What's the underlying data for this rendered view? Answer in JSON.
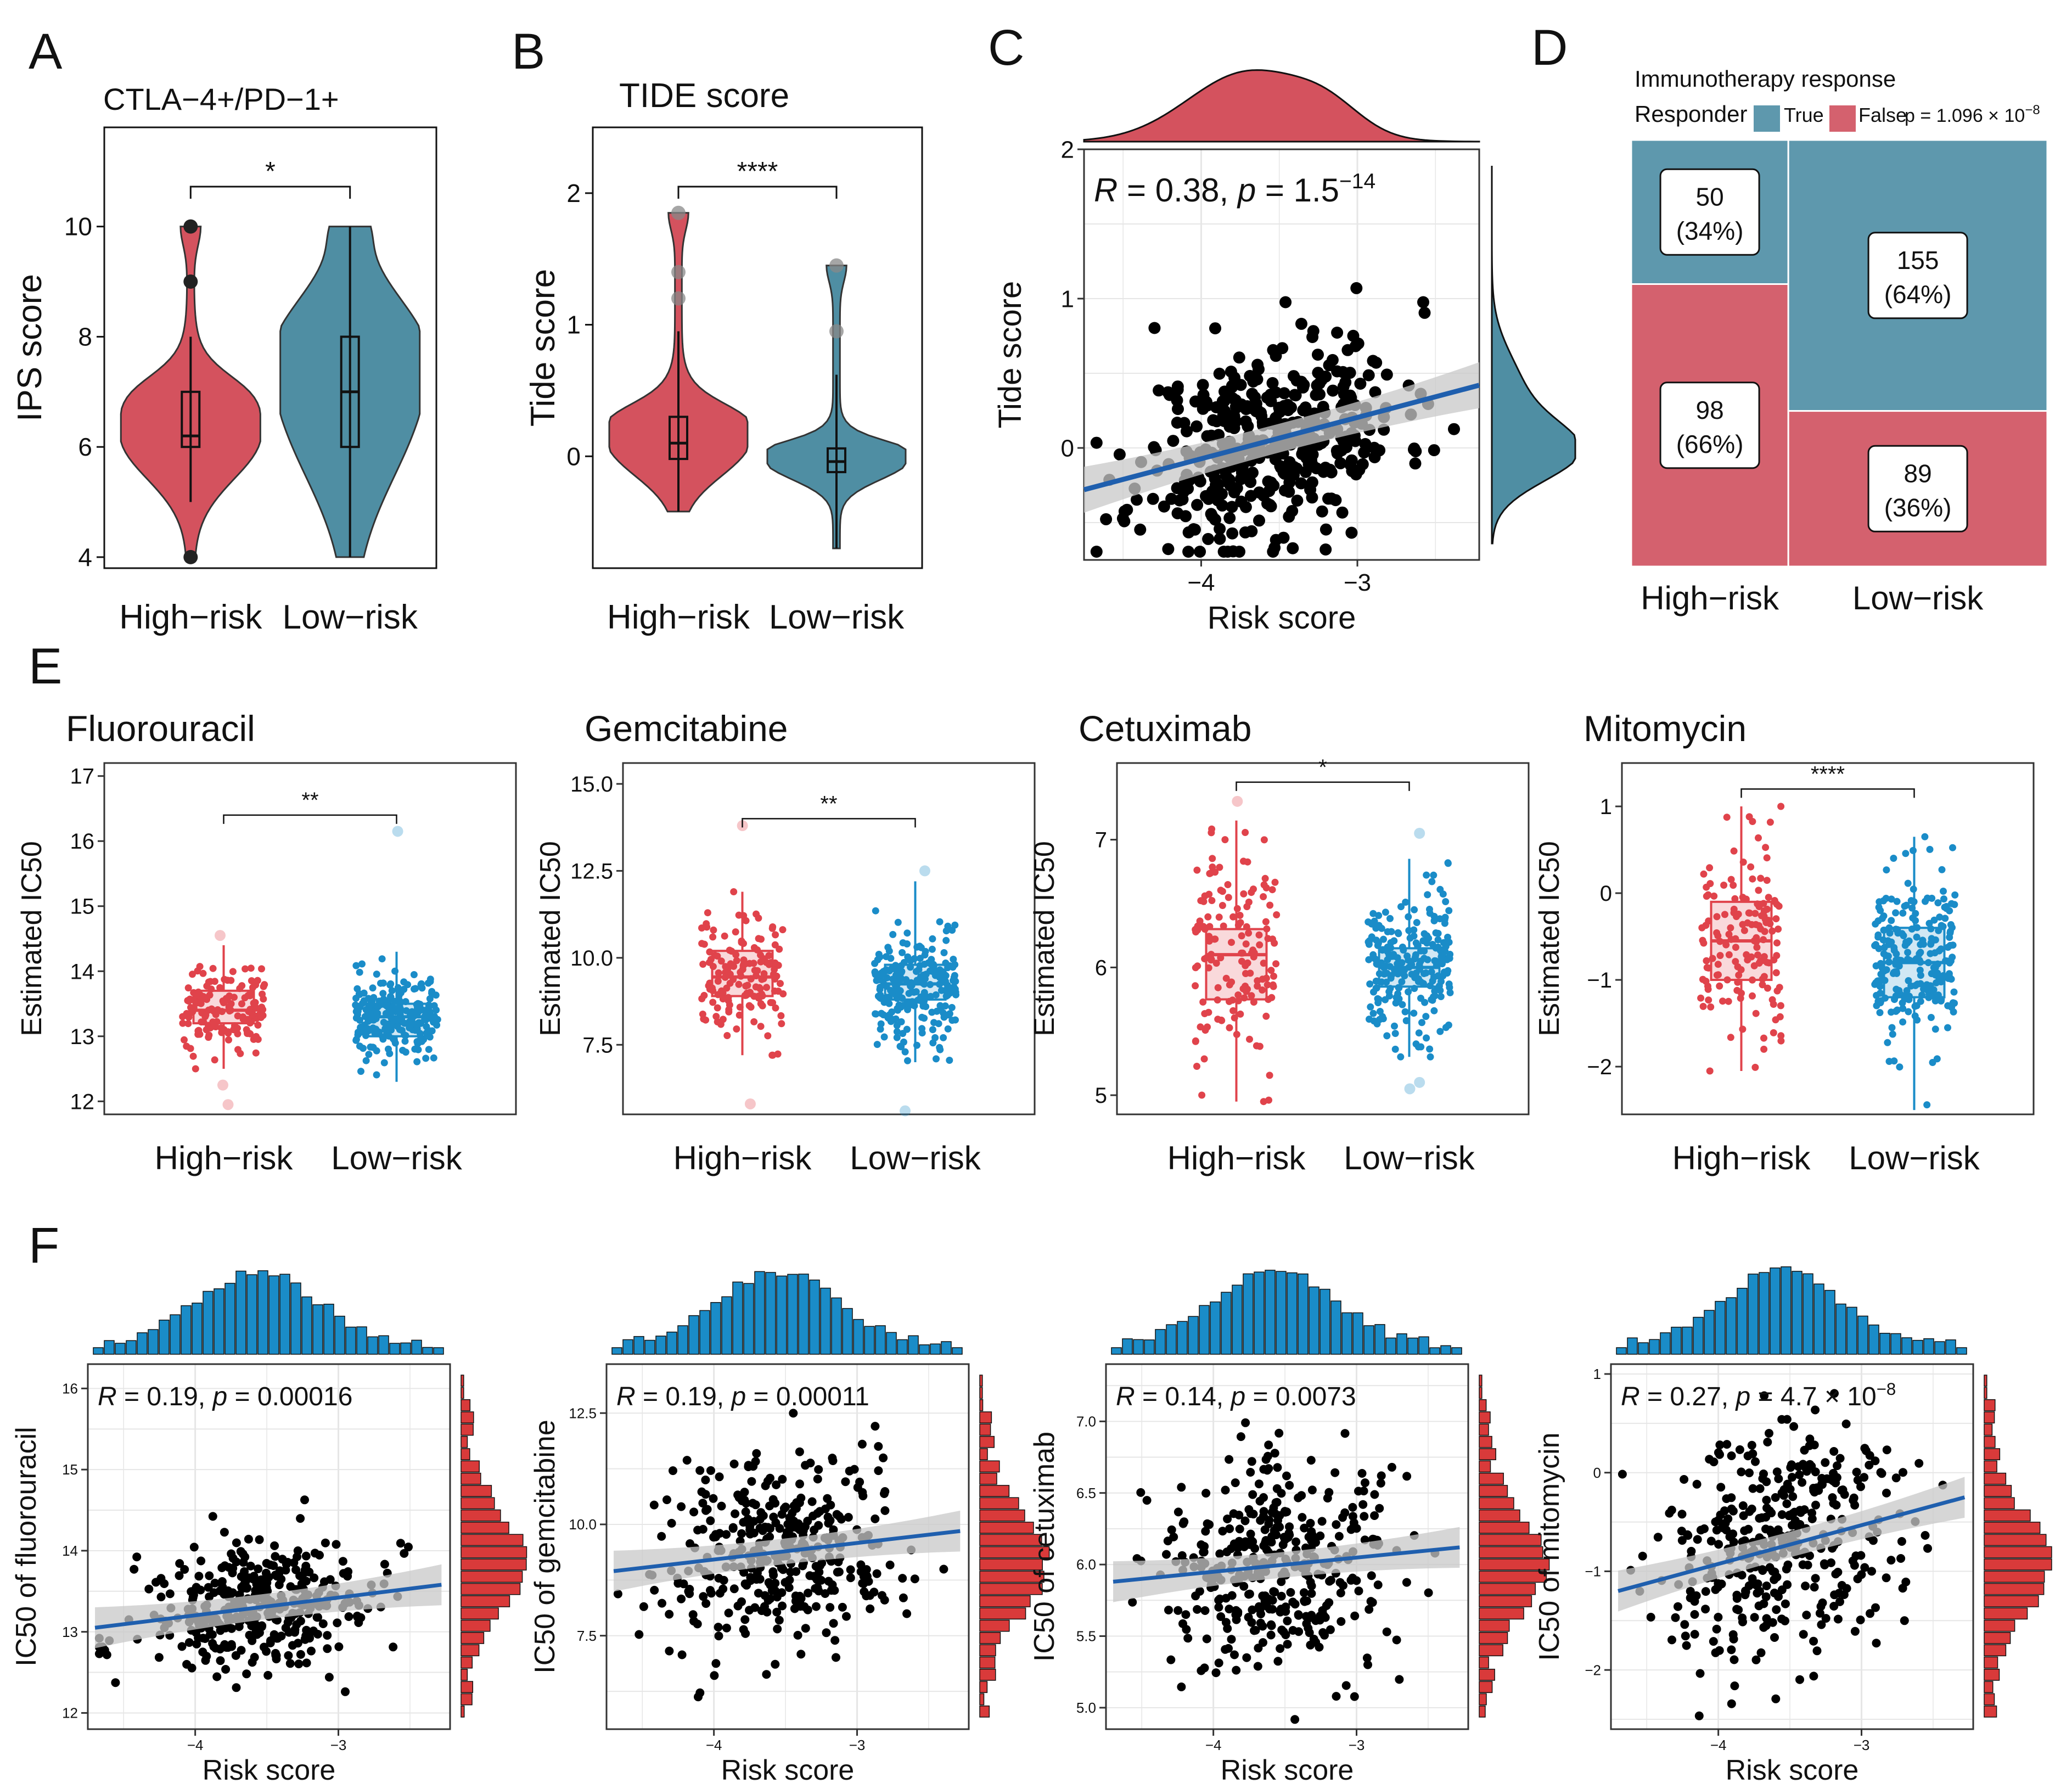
{
  "colors": {
    "high": "#d4525e",
    "low": "#4f8ea3",
    "high_bright": "#e0434b",
    "low_bright": "#1a8cc8",
    "fit": "#1f5fae",
    "band": "#c8c8c8",
    "hist_blue": "#1a8cc8",
    "hist_red": "#d93a3a",
    "grid": "#e6e6e6",
    "mosaic_true": "#5e98ad",
    "mosaic_false": "#d4616e"
  },
  "chart_data": [
    {
      "panel": "A",
      "type": "violin",
      "title": "CTLA−4+/PD−1+",
      "ylabel": "IPS score",
      "ylim": [
        3.8,
        11.8
      ],
      "yticks": [
        4,
        6,
        8,
        10
      ],
      "categories": [
        "High−risk",
        "Low−risk"
      ],
      "groups": [
        {
          "name": "High−risk",
          "min": 4,
          "q1": 6,
          "median": 6.2,
          "q3": 7,
          "max": 8,
          "whisker_low": 5,
          "whisker_high": 8,
          "range": [
            4,
            10
          ],
          "outliers": [
            4,
            9,
            10
          ]
        },
        {
          "name": "Low−risk",
          "min": 4,
          "q1": 6,
          "median": 7,
          "q3": 8,
          "max": 10,
          "whisker_low": 4,
          "whisker_high": 10,
          "range": [
            4,
            10
          ],
          "outliers": []
        }
      ],
      "significance": "*"
    },
    {
      "panel": "B",
      "type": "violin",
      "title": "TIDE score",
      "ylabel": "Tide score",
      "ylim": [
        -0.85,
        2.5
      ],
      "yticks": [
        0,
        1,
        2
      ],
      "categories": [
        "High−risk",
        "Low−risk"
      ],
      "groups": [
        {
          "name": "High−risk",
          "q1": -0.02,
          "median": 0.1,
          "q3": 0.3,
          "whisker_low": -0.42,
          "whisker_high": 0.95,
          "range": [
            -0.42,
            1.85
          ],
          "outliers": [
            1.85,
            1.4,
            1.2
          ]
        },
        {
          "name": "Low−risk",
          "q1": -0.12,
          "median": -0.04,
          "q3": 0.06,
          "whisker_low": -0.7,
          "whisker_high": 0.62,
          "range": [
            -0.7,
            1.45
          ],
          "outliers": [
            1.45,
            0.95
          ]
        }
      ],
      "significance": "****"
    },
    {
      "panel": "C",
      "type": "scatter",
      "xlabel": "Risk score",
      "ylabel": "Tide score",
      "xlim": [
        -4.75,
        -2.22
      ],
      "ylim": [
        -0.75,
        2.0
      ],
      "xticks": [
        -4,
        -3
      ],
      "yticks": [
        0,
        1,
        2
      ],
      "stat": {
        "R": "0.38",
        "p": "1.5",
        "exp": "−14"
      },
      "fit": {
        "x0": -4.75,
        "y0": -0.28,
        "x1": -2.22,
        "y1": 0.42
      },
      "n_points": 420,
      "x_mean": -3.55,
      "x_sd": 0.42,
      "y_sd": 0.33,
      "slope": 0.28,
      "seed": 11
    },
    {
      "panel": "D",
      "type": "mosaic",
      "title": "Immunotherapy response",
      "legend_title": "Responder",
      "legend": [
        "True",
        "False"
      ],
      "p_text": "p = 1.096 × 10",
      "p_exp": "−8",
      "categories": [
        "High−risk",
        "Low−risk"
      ],
      "groups": [
        {
          "name": "High−risk",
          "true": 50,
          "true_pct": "(34%)",
          "false": 98,
          "false_pct": "(66%)"
        },
        {
          "name": "Low−risk",
          "true": 155,
          "true_pct": "(64%)",
          "false": 89,
          "false_pct": "(36%)"
        }
      ]
    },
    {
      "panel": "E1",
      "type": "boxplot_jitter",
      "title": "Fluorouracil",
      "ylabel": "Estimated IC50",
      "ylim": [
        11.8,
        17.2
      ],
      "yticks": [
        12,
        13,
        14,
        15,
        16,
        17
      ],
      "categories": [
        "High−risk",
        "Low−risk"
      ],
      "groups": [
        {
          "name": "High−risk",
          "q1": 13.2,
          "median": 13.4,
          "q3": 13.7,
          "whisker_low": 12.5,
          "whisker_high": 14.4,
          "spread": 0.32,
          "n": 150,
          "outliers": [
            12.25,
            11.95,
            14.55
          ]
        },
        {
          "name": "Low−risk",
          "q1": 13.0,
          "median": 13.3,
          "q3": 13.5,
          "whisker_low": 12.3,
          "whisker_high": 14.3,
          "spread": 0.32,
          "n": 230,
          "outliers": [
            16.15
          ]
        }
      ],
      "significance": "**",
      "sig_level": 16.4
    },
    {
      "panel": "E2",
      "type": "boxplot_jitter",
      "title": "Gemcitabine",
      "ylabel": "Estimated IC50",
      "ylim": [
        5.5,
        15.6
      ],
      "yticks": [
        7.5,
        10.0,
        12.5,
        15.0
      ],
      "tick_fmt": 1,
      "categories": [
        "High−risk",
        "Low−risk"
      ],
      "groups": [
        {
          "name": "High−risk",
          "q1": 8.9,
          "median": 9.45,
          "q3": 10.2,
          "whisker_low": 7.2,
          "whisker_high": 11.9,
          "spread": 0.9,
          "n": 150,
          "outliers": [
            13.8,
            5.8
          ]
        },
        {
          "name": "Low−risk",
          "q1": 8.8,
          "median": 9.25,
          "q3": 9.8,
          "whisker_low": 7.0,
          "whisker_high": 12.2,
          "spread": 0.8,
          "n": 230,
          "outliers": [
            12.5,
            5.6
          ]
        }
      ],
      "significance": "**",
      "sig_level": 14.0
    },
    {
      "panel": "E3",
      "type": "boxplot_jitter",
      "title": "Cetuximab",
      "ylabel": "Estimated IC50",
      "ylim": [
        4.85,
        7.6
      ],
      "yticks": [
        5,
        6,
        7
      ],
      "categories": [
        "High−risk",
        "Low−risk"
      ],
      "groups": [
        {
          "name": "High−risk",
          "q1": 5.75,
          "median": 6.1,
          "q3": 6.3,
          "whisker_low": 4.95,
          "whisker_high": 7.15,
          "spread": 0.42,
          "n": 150,
          "outliers": [
            7.3
          ]
        },
        {
          "name": "Low−risk",
          "q1": 5.85,
          "median": 6.0,
          "q3": 6.15,
          "whisker_low": 5.3,
          "whisker_high": 6.85,
          "spread": 0.3,
          "n": 230,
          "outliers": [
            7.05,
            5.1,
            5.05
          ]
        }
      ],
      "significance": "*",
      "sig_level": 7.45
    },
    {
      "panel": "E4",
      "type": "boxplot_jitter",
      "title": "Mitomycin",
      "ylabel": "Estimated IC50",
      "ylim": [
        -2.55,
        1.5
      ],
      "yticks": [
        -2,
        -1,
        0,
        1
      ],
      "categories": [
        "High−risk",
        "Low−risk"
      ],
      "groups": [
        {
          "name": "High−risk",
          "q1": -1.0,
          "median": -0.55,
          "q3": -0.1,
          "whisker_low": -2.05,
          "whisker_high": 1.0,
          "spread": 0.6,
          "n": 150,
          "outliers": []
        },
        {
          "name": "Low−risk",
          "q1": -1.2,
          "median": -0.8,
          "q3": -0.4,
          "whisker_low": -2.5,
          "whisker_high": 0.65,
          "spread": 0.55,
          "n": 230,
          "outliers": []
        }
      ],
      "significance": "****",
      "sig_level": 1.2
    },
    {
      "panel": "F1",
      "type": "scatter",
      "xlabel": "Risk score",
      "ylabel": "IC50 of fluorouracil",
      "xlim": [
        -4.75,
        -2.22
      ],
      "ylim": [
        11.8,
        16.3
      ],
      "xticks": [
        -4,
        -3
      ],
      "yticks": [
        12,
        13,
        14,
        15,
        16
      ],
      "stat": {
        "R": "0.19",
        "p": "0.00016",
        "exp": ""
      },
      "fit": {
        "x0": -4.7,
        "y0": 13.05,
        "x1": -2.28,
        "y1": 13.58
      },
      "n_points": 380,
      "x_mean": -3.55,
      "x_sd": 0.42,
      "y_sd": 0.38,
      "slope": 0.2,
      "seed": 21
    },
    {
      "panel": "F2",
      "type": "scatter",
      "xlabel": "Risk score",
      "ylabel": "IC50 of gemcitabine",
      "xlim": [
        -4.75,
        -2.22
      ],
      "ylim": [
        5.4,
        13.6
      ],
      "xticks": [
        -4,
        -3
      ],
      "yticks": [
        7.5,
        10.0,
        12.5
      ],
      "tick_fmt": 1,
      "stat": {
        "R": "0.19",
        "p": "0.00011",
        "exp": ""
      },
      "fit": {
        "x0": -4.7,
        "y0": 8.95,
        "x1": -2.28,
        "y1": 9.85
      },
      "n_points": 380,
      "x_mean": -3.55,
      "x_sd": 0.42,
      "y_sd": 1.05,
      "slope": 0.37,
      "seed": 31
    },
    {
      "panel": "F3",
      "type": "scatter",
      "xlabel": "Risk score",
      "ylabel": "IC50 of cetuximab",
      "xlim": [
        -4.75,
        -2.22
      ],
      "ylim": [
        4.85,
        7.4
      ],
      "xticks": [
        -4,
        -3
      ],
      "yticks": [
        5.0,
        5.5,
        6.0,
        6.5,
        7.0
      ],
      "tick_fmt": 1,
      "stat": {
        "R": "0.14",
        "p": "0.0073",
        "exp": ""
      },
      "fit": {
        "x0": -4.7,
        "y0": 5.88,
        "x1": -2.28,
        "y1": 6.12
      },
      "n_points": 380,
      "x_mean": -3.55,
      "x_sd": 0.42,
      "y_sd": 0.38,
      "slope": 0.1,
      "seed": 41
    },
    {
      "panel": "F4",
      "type": "scatter",
      "xlabel": "Risk score",
      "ylabel": "IC50 of mitomycin",
      "xlim": [
        -4.75,
        -2.22
      ],
      "ylim": [
        -2.6,
        1.1
      ],
      "xticks": [
        -4,
        -3
      ],
      "yticks": [
        -2,
        -1,
        0,
        1
      ],
      "stat": {
        "R": "0.27",
        "p": "4.7 × 10",
        "exp": "−8"
      },
      "fit": {
        "x0": -4.7,
        "y0": -1.2,
        "x1": -2.28,
        "y1": -0.25
      },
      "n_points": 380,
      "x_mean": -3.55,
      "x_sd": 0.42,
      "y_sd": 0.6,
      "slope": 0.39,
      "seed": 51
    }
  ],
  "panel_letters": [
    "A",
    "B",
    "C",
    "D",
    "E",
    "F"
  ]
}
